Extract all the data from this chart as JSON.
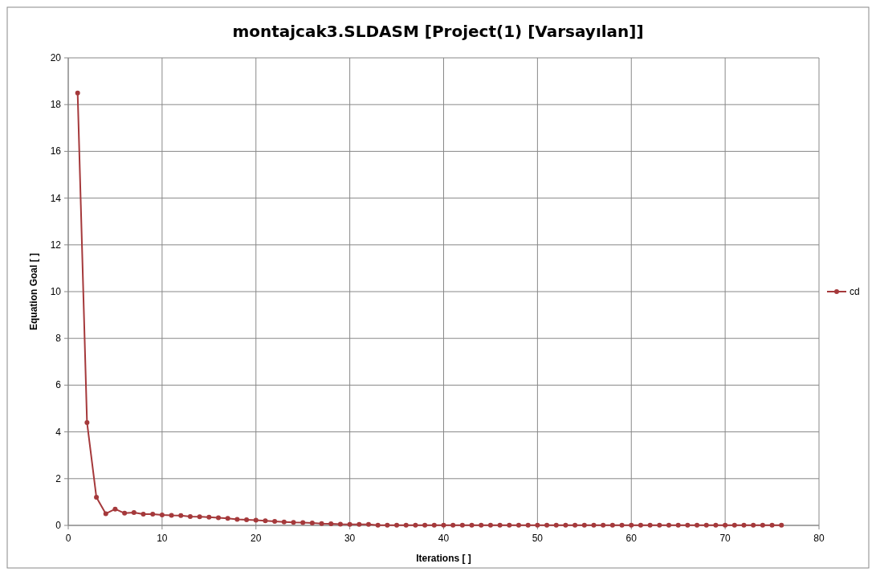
{
  "chart_data": {
    "type": "line",
    "title": "montajcak3.SLDASM [Project(1) [Varsayılan]]",
    "xlabel": "Iterations [ ]",
    "ylabel": "Equation Goal [ ]",
    "x": [
      1,
      2,
      3,
      4,
      5,
      6,
      7,
      8,
      9,
      10,
      11,
      12,
      13,
      14,
      15,
      16,
      17,
      18,
      19,
      20,
      21,
      22,
      23,
      24,
      25,
      26,
      27,
      28,
      29,
      30,
      31,
      32,
      33,
      34,
      35,
      36,
      37,
      38,
      39,
      40,
      41,
      42,
      43,
      44,
      45,
      46,
      47,
      48,
      49,
      50,
      51,
      52,
      53,
      54,
      55,
      56,
      57,
      58,
      59,
      60,
      61,
      62,
      63,
      64,
      65,
      66,
      67,
      68,
      69,
      70,
      71,
      72,
      73,
      74,
      75,
      76
    ],
    "series": [
      {
        "name": "cd",
        "color": "#a5393b",
        "values": [
          18.5,
          4.4,
          1.2,
          0.5,
          0.7,
          0.52,
          0.55,
          0.48,
          0.48,
          0.45,
          0.43,
          0.42,
          0.38,
          0.37,
          0.35,
          0.33,
          0.3,
          0.26,
          0.24,
          0.22,
          0.2,
          0.17,
          0.15,
          0.13,
          0.12,
          0.1,
          0.08,
          0.07,
          0.05,
          0.04,
          0.04,
          0.04,
          0.01,
          0.01,
          0.01,
          0.01,
          0.01,
          0.01,
          0.01,
          0.01,
          0.01,
          0.01,
          0.01,
          0.01,
          0.01,
          0.01,
          0.01,
          0.01,
          0.01,
          0.01,
          0.01,
          0.01,
          0.01,
          0.01,
          0.01,
          0.01,
          0.01,
          0.01,
          0.01,
          0.01,
          0.01,
          0.01,
          0.01,
          0.01,
          0.01,
          0.01,
          0.01,
          0.01,
          0.01,
          0.01,
          0.01,
          0.01,
          0.01,
          0.01,
          0.01,
          0.01
        ]
      }
    ],
    "xlim": [
      0,
      80
    ],
    "xticks": [
      0,
      10,
      20,
      30,
      40,
      50,
      60,
      70,
      80
    ],
    "ylim": [
      0,
      20
    ],
    "yticks": [
      0,
      2,
      4,
      6,
      8,
      10,
      12,
      14,
      16,
      18,
      20
    ],
    "grid": true,
    "legend": "right",
    "marker": "circle",
    "line_style": "solid"
  }
}
